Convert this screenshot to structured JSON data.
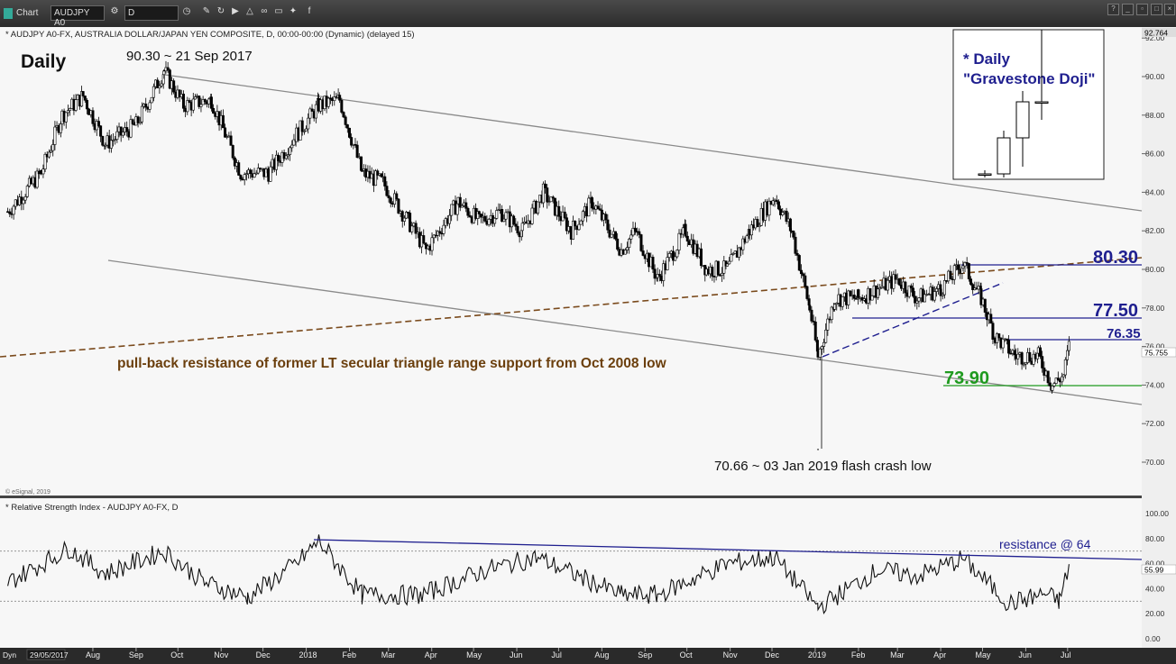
{
  "toolbar": {
    "app_label": "Chart",
    "symbol": "AUDJPY A0",
    "interval": "D"
  },
  "price_panel": {
    "header": "* AUDJPY A0-FX, AUSTRALIA DOLLAR/JAPAN YEN COMPOSITE, D, 00:00-00:00 (Dynamic) (delayed 15)",
    "watermark": "© eSignal, 2019",
    "timeframe_label": "Daily",
    "last_price": "92.764",
    "current_tag": "75.755"
  },
  "rsi_panel": {
    "header": "* Relative Strength Index - AUDJPY A0-FX, D",
    "current_tag": "55.99"
  },
  "annotations": {
    "high": "90.30 ~ 21 Sep 2017",
    "low": "70.66 ~ 03 Jan 2019 flash crash low",
    "trendline_note": "pull-back resistance of former LT secular triangle range support from Oct 2008 low",
    "level_80": "80.30",
    "level_775": "77.50",
    "level_7635": "76.35",
    "level_739": "73.90",
    "rsi_resistance": "resistance @ 64",
    "inset_title_1": "* Daily",
    "inset_title_2": "\"Gravestone Doji\""
  },
  "x_axis": {
    "start_date": "29/05/2017",
    "corner": "Dyn",
    "labels": [
      "Aug",
      "Sep",
      "Oct",
      "Nov",
      "Dec",
      "2018",
      "Feb",
      "Mar",
      "Apr",
      "May",
      "Jun",
      "Jul",
      "Aug",
      "Sep",
      "Oct",
      "Nov",
      "Dec",
      "2019",
      "Feb",
      "Mar",
      "Apr",
      "May",
      "Jun",
      "Jul"
    ]
  },
  "colors": {
    "background": "#f7f7f7",
    "candle": "#000000",
    "trend_gray": "#8a8a8a",
    "trend_brown": "#7a4a1c",
    "level_navy": "#1f1f8f",
    "level_green": "#1f9a1f",
    "annotation_brown": "#6b3f0d"
  },
  "chart_data": {
    "type": "candlestick",
    "title": "AUDJPY A0-FX, AUSTRALIA DOLLAR/JAPAN YEN COMPOSITE, D",
    "ylim": [
      68.0,
      92.764
    ],
    "y_ticks": [
      "92.00",
      "90.00",
      "88.00",
      "86.00",
      "84.00",
      "82.00",
      "80.00",
      "78.00",
      "76.00",
      "74.00",
      "72.00",
      "70.00"
    ],
    "x_range": [
      "2017-05-29",
      "2019-07-05"
    ],
    "price_path": [
      {
        "date": "2017-06-01",
        "close": 83.0
      },
      {
        "date": "2017-06-25",
        "close": 85.0
      },
      {
        "date": "2017-07-10",
        "close": 88.0
      },
      {
        "date": "2017-07-25",
        "close": 89.0
      },
      {
        "date": "2017-08-10",
        "close": 86.5
      },
      {
        "date": "2017-09-01",
        "close": 87.5
      },
      {
        "date": "2017-09-21",
        "close": 90.3
      },
      {
        "date": "2017-10-05",
        "close": 88.5
      },
      {
        "date": "2017-10-25",
        "close": 88.8
      },
      {
        "date": "2017-11-15",
        "close": 85.0
      },
      {
        "date": "2017-12-05",
        "close": 85.0
      },
      {
        "date": "2017-12-25",
        "close": 87.0
      },
      {
        "date": "2018-01-10",
        "close": 88.5
      },
      {
        "date": "2018-01-25",
        "close": 88.8
      },
      {
        "date": "2018-02-10",
        "close": 85.0
      },
      {
        "date": "2018-02-25",
        "close": 84.5
      },
      {
        "date": "2018-03-15",
        "close": 82.5
      },
      {
        "date": "2018-03-28",
        "close": 81.0
      },
      {
        "date": "2018-04-20",
        "close": 83.5
      },
      {
        "date": "2018-05-05",
        "close": 82.5
      },
      {
        "date": "2018-05-20",
        "close": 83.0
      },
      {
        "date": "2018-06-05",
        "close": 82.0
      },
      {
        "date": "2018-06-20",
        "close": 84.0
      },
      {
        "date": "2018-07-10",
        "close": 82.0
      },
      {
        "date": "2018-07-25",
        "close": 83.5
      },
      {
        "date": "2018-08-15",
        "close": 81.0
      },
      {
        "date": "2018-08-25",
        "close": 82.0
      },
      {
        "date": "2018-09-10",
        "close": 79.5
      },
      {
        "date": "2018-09-30",
        "close": 82.0
      },
      {
        "date": "2018-10-15",
        "close": 80.0
      },
      {
        "date": "2018-10-30",
        "close": 80.0
      },
      {
        "date": "2018-11-15",
        "close": 82.0
      },
      {
        "date": "2018-12-03",
        "close": 83.8
      },
      {
        "date": "2018-12-15",
        "close": 82.0
      },
      {
        "date": "2018-12-28",
        "close": 78.0
      },
      {
        "date": "2019-01-03",
        "close": 75.5
      },
      {
        "date": "2019-01-15",
        "close": 78.5
      },
      {
        "date": "2019-02-01",
        "close": 78.5
      },
      {
        "date": "2019-02-15",
        "close": 79.0
      },
      {
        "date": "2019-03-01",
        "close": 79.5
      },
      {
        "date": "2019-03-15",
        "close": 78.5
      },
      {
        "date": "2019-04-01",
        "close": 79.0
      },
      {
        "date": "2019-04-17",
        "close": 80.3
      },
      {
        "date": "2019-04-30",
        "close": 78.5
      },
      {
        "date": "2019-05-10",
        "close": 76.5
      },
      {
        "date": "2019-05-25",
        "close": 75.5
      },
      {
        "date": "2019-06-10",
        "close": 75.5
      },
      {
        "date": "2019-06-20",
        "close": 74.0
      },
      {
        "date": "2019-06-28",
        "close": 74.5
      },
      {
        "date": "2019-07-02",
        "close": 76.0
      }
    ],
    "key_points": [
      {
        "label": "90.30 ~ 21 Sep 2017",
        "date": "2017-09-21",
        "value": 90.3
      },
      {
        "label": "70.66 ~ 03 Jan 2019 flash crash low",
        "date": "2019-01-03",
        "value": 70.66
      }
    ],
    "horizontal_levels": [
      80.3,
      77.5,
      76.35,
      73.9
    ],
    "rsi": {
      "name": "Relative Strength Index",
      "ylim": [
        0,
        100
      ],
      "y_ticks": [
        "100.00",
        "80.00",
        "60.00",
        "40.00",
        "20.00",
        "0.00"
      ],
      "guides": [
        70,
        30
      ],
      "path": [
        {
          "date": "2017-06-01",
          "value": 45
        },
        {
          "date": "2017-07-15",
          "value": 72
        },
        {
          "date": "2017-08-10",
          "value": 52
        },
        {
          "date": "2017-09-21",
          "value": 70
        },
        {
          "date": "2017-10-20",
          "value": 45
        },
        {
          "date": "2017-11-20",
          "value": 33
        },
        {
          "date": "2017-12-25",
          "value": 60
        },
        {
          "date": "2018-01-10",
          "value": 78
        },
        {
          "date": "2018-02-10",
          "value": 35
        },
        {
          "date": "2018-03-25",
          "value": 35
        },
        {
          "date": "2018-05-10",
          "value": 55
        },
        {
          "date": "2018-06-15",
          "value": 65
        },
        {
          "date": "2018-08-15",
          "value": 35
        },
        {
          "date": "2018-09-10",
          "value": 35
        },
        {
          "date": "2018-10-30",
          "value": 60
        },
        {
          "date": "2018-12-03",
          "value": 65
        },
        {
          "date": "2019-01-03",
          "value": 25
        },
        {
          "date": "2019-02-15",
          "value": 55
        },
        {
          "date": "2019-03-15",
          "value": 50
        },
        {
          "date": "2019-04-17",
          "value": 64
        },
        {
          "date": "2019-05-20",
          "value": 28
        },
        {
          "date": "2019-06-15",
          "value": 36
        },
        {
          "date": "2019-06-25",
          "value": 30
        },
        {
          "date": "2019-07-02",
          "value": 58
        }
      ],
      "resistance_line": {
        "from": {
          "date": "2018-01-10",
          "value": 78
        },
        "to": {
          "date": "2019-07-08",
          "value": 64
        }
      }
    },
    "inset": {
      "type": "candlestick",
      "candles": [
        {
          "o": 85.0,
          "h": 85.1,
          "l": 84.9,
          "c": 85.0
        },
        {
          "o": 85.0,
          "h": 86.2,
          "l": 84.9,
          "c": 86.0
        },
        {
          "o": 86.0,
          "h": 87.3,
          "l": 85.2,
          "c": 87.0
        },
        {
          "o": 87.0,
          "h": 89.0,
          "l": 86.5,
          "c": 87.0
        }
      ]
    }
  }
}
